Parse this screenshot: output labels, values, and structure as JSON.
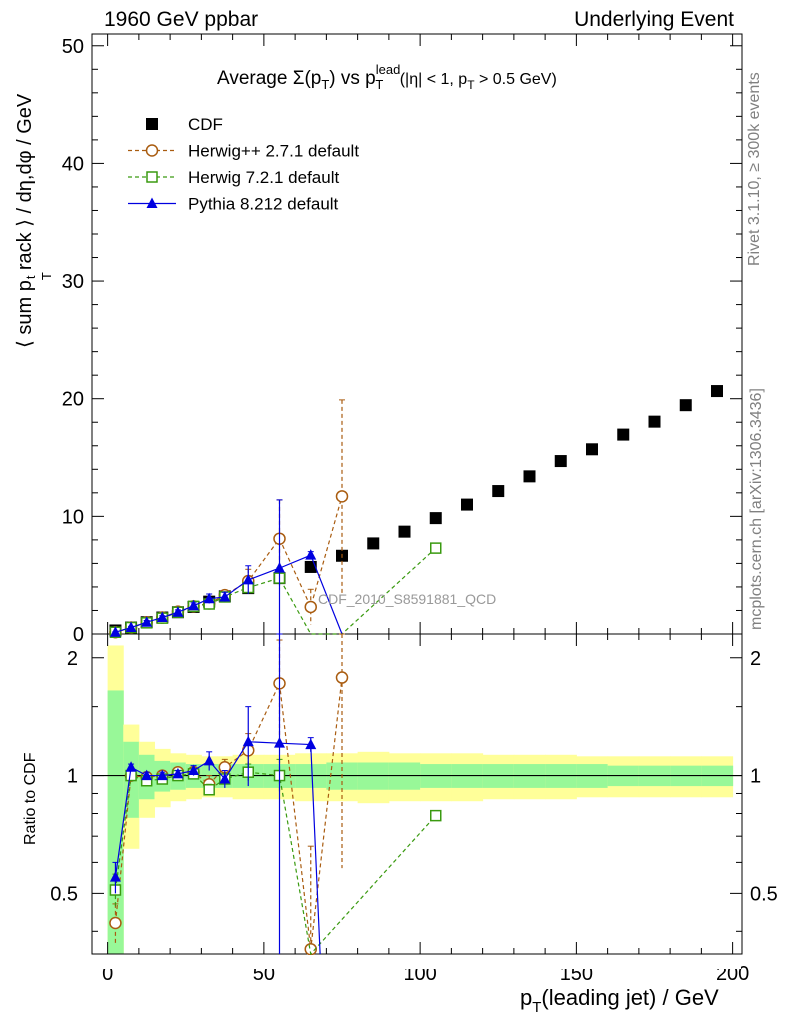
{
  "header": {
    "left": "1960 GeV ppbar",
    "right": "Underlying Event"
  },
  "side_labels": {
    "rivet": "Rivet 3.1.10, ≥ 300k events",
    "mcplots": "mcplots.cern.ch [arXiv:1306.3436]"
  },
  "chart_data": [
    {
      "panel": "main",
      "type": "scatter",
      "title": "Average Σ(p_T) vs p_T^lead (|η| < 1, p_T > 0.5 GeV)",
      "title_parts": {
        "a": "Average Σ(p",
        "b": "T",
        "c": ") vs p",
        "d": "lead",
        "e": "T",
        "f": " (|η| < 1, p",
        "g": "T",
        "h": " > 0.5 GeV)"
      },
      "ylabel": "⟨ sum p_T^track ⟩ / dη,dφ / GeV",
      "ylabel_parts": {
        "a": "⟨ sum p",
        "b": "T",
        "c": "t",
        "d": "rack ⟩ / dη,dφ / GeV"
      },
      "xlabel": "p_T(leading jet) / GeV",
      "xlim": [
        -5,
        203
      ],
      "ylim": [
        0,
        51
      ],
      "yticks": [
        0,
        10,
        20,
        30,
        40,
        50
      ],
      "tick_labels": [
        "0",
        "10",
        "20",
        "30",
        "40",
        "50"
      ],
      "watermark": "CDF_2010_S8591881_QCD",
      "legend_position": "top-left",
      "series": [
        {
          "name": "CDF",
          "style": "data",
          "color": "#000000",
          "x": [
            2.5,
            7.5,
            12.5,
            17.5,
            22.5,
            27.5,
            32.5,
            37.5,
            45,
            55,
            65,
            75,
            85,
            95,
            105,
            115,
            125,
            135,
            145,
            155,
            165,
            175,
            185,
            195
          ],
          "y": [
            0.3,
            0.55,
            1.0,
            1.4,
            1.85,
            2.3,
            2.75,
            3.2,
            3.9,
            4.75,
            5.7,
            6.65,
            7.7,
            8.7,
            9.85,
            11.0,
            12.15,
            13.4,
            14.7,
            15.7,
            16.95,
            18.05,
            19.45,
            20.65
          ]
        },
        {
          "name": "Herwig++ 2.7.1 default",
          "style": "circle-dashed",
          "color": "#a95c10",
          "x": [
            2.5,
            7.5,
            12.5,
            17.5,
            22.5,
            27.5,
            32.5,
            37.5,
            45,
            55,
            65,
            75
          ],
          "y": [
            0.15,
            0.55,
            1.0,
            1.4,
            1.9,
            2.35,
            2.6,
            3.3,
            4.5,
            8.1,
            2.3,
            11.7
          ],
          "err": [
            0.05,
            0.1,
            0.15,
            0.15,
            0.2,
            0.25,
            0.4,
            0.4,
            1.0,
            3.3,
            1.5,
            8.2
          ]
        },
        {
          "name": "Herwig 7.2.1 default",
          "style": "square-dashed",
          "color": "#3a9a10",
          "x": [
            2.5,
            7.5,
            12.5,
            17.5,
            22.5,
            27.5,
            32.5,
            37.5,
            45,
            55,
            65,
            75,
            105
          ],
          "y": [
            0.15,
            0.55,
            0.95,
            1.35,
            1.85,
            2.35,
            2.55,
            3.15,
            3.95,
            4.75,
            0.0,
            0.0,
            7.3
          ],
          "err": [
            0.05,
            0.1,
            0.1,
            0.15,
            0.2,
            0.2,
            0.3,
            0.3,
            0.5,
            0.9,
            0,
            0,
            0
          ],
          "markers_hidden": [
            10,
            11
          ]
        },
        {
          "name": "Pythia 8.212 default",
          "style": "triangle-solid",
          "color": "#0000e0",
          "x": [
            2.5,
            7.5,
            12.5,
            17.5,
            22.5,
            27.5,
            32.5,
            37.5,
            45,
            55,
            65,
            75
          ],
          "y": [
            0.15,
            0.55,
            1.0,
            1.4,
            1.85,
            2.4,
            3.0,
            3.15,
            4.6,
            5.6,
            6.7,
            0.0
          ],
          "err": [
            0.05,
            0.1,
            0.15,
            0.15,
            0.2,
            0.25,
            0.4,
            0.4,
            1.2,
            5.8,
            0.3,
            0
          ]
        }
      ]
    },
    {
      "panel": "ratio",
      "type": "line",
      "ylabel": "Ratio to CDF",
      "xlabel": "p_T(leading jet) / GeV",
      "xlim": [
        -5,
        203
      ],
      "ylim": [
        0.35,
        2.3
      ],
      "yticks": [
        0.5,
        1,
        2
      ],
      "tick_labels": [
        "0.5",
        "1",
        "2"
      ],
      "xticks": [
        0,
        50,
        100,
        150,
        200
      ],
      "xtick_labels": [
        "0",
        "50",
        "100",
        "150",
        "200"
      ],
      "reference_line": 1,
      "bands": {
        "x_edges": [
          0,
          5,
          10,
          15,
          20,
          25,
          30,
          35,
          40,
          50,
          60,
          70,
          80,
          90,
          100,
          110,
          120,
          130,
          140,
          150,
          160,
          170,
          180,
          190,
          200
        ],
        "yellow_half": [
          1.15,
          0.35,
          0.22,
          0.17,
          0.14,
          0.13,
          0.12,
          0.12,
          0.13,
          0.13,
          0.14,
          0.14,
          0.15,
          0.14,
          0.14,
          0.14,
          0.13,
          0.13,
          0.13,
          0.12,
          0.12,
          0.12,
          0.12,
          0.12
        ],
        "green_half": [
          0.65,
          0.22,
          0.13,
          0.09,
          0.08,
          0.07,
          0.07,
          0.07,
          0.07,
          0.07,
          0.07,
          0.08,
          0.08,
          0.08,
          0.07,
          0.07,
          0.07,
          0.07,
          0.07,
          0.07,
          0.06,
          0.06,
          0.06,
          0.06
        ],
        "yellow_color": "#ffff99",
        "green_color": "#98f898"
      },
      "series": [
        {
          "name": "Herwig++ 2.7.1 default",
          "color": "#a95c10",
          "x": [
            2.5,
            7.5,
            12.5,
            17.5,
            22.5,
            27.5,
            32.5,
            37.5,
            45,
            55,
            65,
            75
          ],
          "y": [
            0.42,
            1.0,
            0.99,
            1.0,
            1.02,
            1.02,
            0.95,
            1.05,
            1.16,
            1.72,
            0.36,
            1.78
          ],
          "err": [
            0.05,
            0.02,
            0.02,
            0.02,
            0.02,
            0.03,
            0.05,
            0.05,
            0.12,
            0.5,
            0.3,
            1.2
          ]
        },
        {
          "name": "Herwig 7.2.1 default",
          "color": "#3a9a10",
          "x": [
            2.5,
            7.5,
            12.5,
            17.5,
            22.5,
            27.5,
            32.5,
            37.5,
            45,
            55,
            65,
            105
          ],
          "y": [
            0.51,
            1.0,
            0.97,
            0.98,
            1.0,
            1.01,
            0.92,
            0.98,
            1.02,
            1.0,
            0.0,
            0.79
          ],
          "err": [
            0.05,
            0.02,
            0.02,
            0.02,
            0.02,
            0.02,
            0.03,
            0.03,
            0.05,
            0.1,
            0,
            0
          ],
          "markers_hidden": [
            10
          ]
        },
        {
          "name": "Pythia 8.212 default",
          "color": "#0000e0",
          "x": [
            2.5,
            7.5,
            12.5,
            17.5,
            22.5,
            27.5,
            32.5,
            37.5,
            45,
            55,
            65,
            68
          ],
          "y": [
            0.55,
            1.05,
            1.0,
            1.0,
            1.01,
            1.03,
            1.09,
            0.98,
            1.22,
            1.21,
            1.2,
            0.0
          ],
          "err": [
            0.05,
            0.02,
            0.02,
            0.02,
            0.02,
            0.03,
            0.06,
            0.05,
            0.28,
            1.2,
            0.05,
            0
          ],
          "markers_hidden": [
            11
          ]
        }
      ]
    }
  ]
}
